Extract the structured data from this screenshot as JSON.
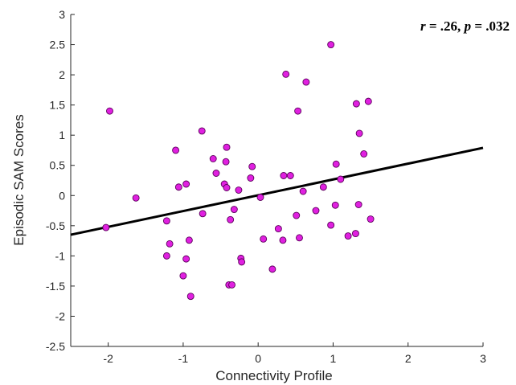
{
  "chart_data": {
    "type": "scatter",
    "xlabel": "Connectivity Profile",
    "ylabel": "Episodic SAM Scores",
    "xlim": [
      -2.5,
      3
    ],
    "ylim": [
      -2.5,
      3
    ],
    "xticks": [
      -2,
      -1,
      0,
      1,
      2,
      3
    ],
    "yticks": [
      -2.5,
      -2,
      -1.5,
      -1,
      -0.5,
      0,
      0.5,
      1,
      1.5,
      2,
      2.5,
      3
    ],
    "xtick_labels": [
      "-2",
      "-1",
      "0",
      "1",
      "2",
      "3"
    ],
    "ytick_labels": [
      "-2.5",
      "-2",
      "-1.5",
      "-1",
      "-0.5",
      "0",
      "0.5",
      "1",
      "1.5",
      "2",
      "2.5",
      "3"
    ],
    "grid": false,
    "annotation": {
      "r_symbol": "r",
      "r_text": " = .26, ",
      "p_symbol": "p",
      "p_text": " = .032"
    },
    "marker_color": "#e020e0",
    "marker_edge_color": "#5a005a",
    "line_color": "#000000",
    "fit_line": {
      "x": [
        -2.5,
        3
      ],
      "y": [
        -0.65,
        0.79
      ]
    },
    "points": [
      {
        "x": -2.03,
        "y": -0.53
      },
      {
        "x": -1.98,
        "y": 1.4
      },
      {
        "x": -1.63,
        "y": -0.04
      },
      {
        "x": -1.22,
        "y": -0.42
      },
      {
        "x": -1.22,
        "y": -1.0
      },
      {
        "x": -1.18,
        "y": -0.8
      },
      {
        "x": -1.1,
        "y": 0.75
      },
      {
        "x": -1.06,
        "y": 0.14
      },
      {
        "x": -1.0,
        "y": -1.33
      },
      {
        "x": -0.96,
        "y": -1.05
      },
      {
        "x": -0.96,
        "y": 0.19
      },
      {
        "x": -0.92,
        "y": -0.74
      },
      {
        "x": -0.9,
        "y": -1.67
      },
      {
        "x": -0.75,
        "y": 1.07
      },
      {
        "x": -0.74,
        "y": -0.3
      },
      {
        "x": -0.6,
        "y": 0.61
      },
      {
        "x": -0.56,
        "y": 0.37
      },
      {
        "x": -0.45,
        "y": 0.19
      },
      {
        "x": -0.43,
        "y": 0.56
      },
      {
        "x": -0.42,
        "y": 0.13
      },
      {
        "x": -0.42,
        "y": 0.8
      },
      {
        "x": -0.39,
        "y": -1.48
      },
      {
        "x": -0.37,
        "y": -0.4
      },
      {
        "x": -0.35,
        "y": -1.48
      },
      {
        "x": -0.32,
        "y": -0.23
      },
      {
        "x": -0.26,
        "y": 0.09
      },
      {
        "x": -0.23,
        "y": -1.04
      },
      {
        "x": -0.22,
        "y": -1.1
      },
      {
        "x": -0.1,
        "y": 0.29
      },
      {
        "x": -0.08,
        "y": 0.48
      },
      {
        "x": 0.03,
        "y": -0.03
      },
      {
        "x": 0.07,
        "y": -0.72
      },
      {
        "x": 0.19,
        "y": -1.22
      },
      {
        "x": 0.27,
        "y": -0.55
      },
      {
        "x": 0.33,
        "y": -0.74
      },
      {
        "x": 0.34,
        "y": 0.33
      },
      {
        "x": 0.37,
        "y": 2.01
      },
      {
        "x": 0.43,
        "y": 0.33
      },
      {
        "x": 0.51,
        "y": -0.33
      },
      {
        "x": 0.53,
        "y": 1.4
      },
      {
        "x": 0.55,
        "y": -0.7
      },
      {
        "x": 0.6,
        "y": 0.07
      },
      {
        "x": 0.64,
        "y": 1.88
      },
      {
        "x": 0.77,
        "y": -0.25
      },
      {
        "x": 0.87,
        "y": 0.14
      },
      {
        "x": 0.97,
        "y": 2.5
      },
      {
        "x": 0.97,
        "y": -0.49
      },
      {
        "x": 1.03,
        "y": -0.16
      },
      {
        "x": 1.04,
        "y": 0.52
      },
      {
        "x": 1.1,
        "y": 0.27
      },
      {
        "x": 1.2,
        "y": -0.67
      },
      {
        "x": 1.3,
        "y": -0.63
      },
      {
        "x": 1.31,
        "y": 1.52
      },
      {
        "x": 1.34,
        "y": -0.15
      },
      {
        "x": 1.35,
        "y": 1.03
      },
      {
        "x": 1.41,
        "y": 0.69
      },
      {
        "x": 1.47,
        "y": 1.56
      },
      {
        "x": 1.5,
        "y": -0.39
      }
    ]
  }
}
